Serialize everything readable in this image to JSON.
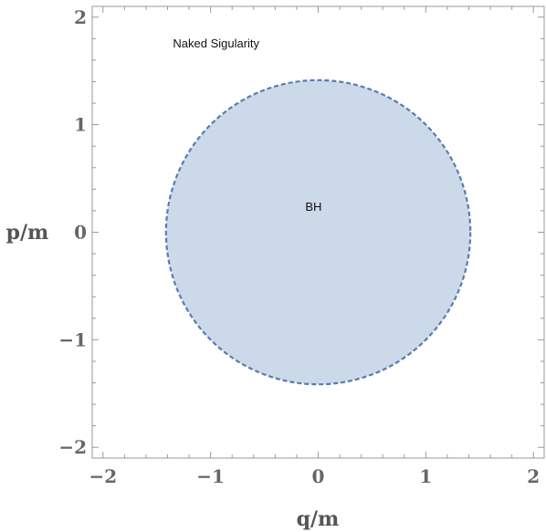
{
  "chart_data": {
    "type": "region",
    "xlabel": "q/m",
    "ylabel": "p/m",
    "xlim": [
      -2.1,
      2.1
    ],
    "ylim": [
      -2.1,
      2.1
    ],
    "xticks": [
      -2,
      -1,
      0,
      1,
      2
    ],
    "yticks": [
      -2,
      -1,
      0,
      1,
      2
    ],
    "xtick_labels": [
      "−2",
      "−1",
      "0",
      "1",
      "2"
    ],
    "ytick_labels": [
      "−2",
      "−1",
      "0",
      "1",
      "2"
    ],
    "grid": false,
    "regions": [
      {
        "label": "BH",
        "shape": "disk",
        "center": [
          0,
          0
        ],
        "radius": 1.4142,
        "fill": "#ccd9e8",
        "edge": "#5b7bb0",
        "edge_style": "dashed"
      }
    ],
    "annotations": [
      {
        "text": "Naked Sigularity",
        "at": [
          -1.35,
          1.72
        ]
      },
      {
        "text": "BH",
        "at": [
          -0.12,
          0.2
        ]
      }
    ]
  }
}
